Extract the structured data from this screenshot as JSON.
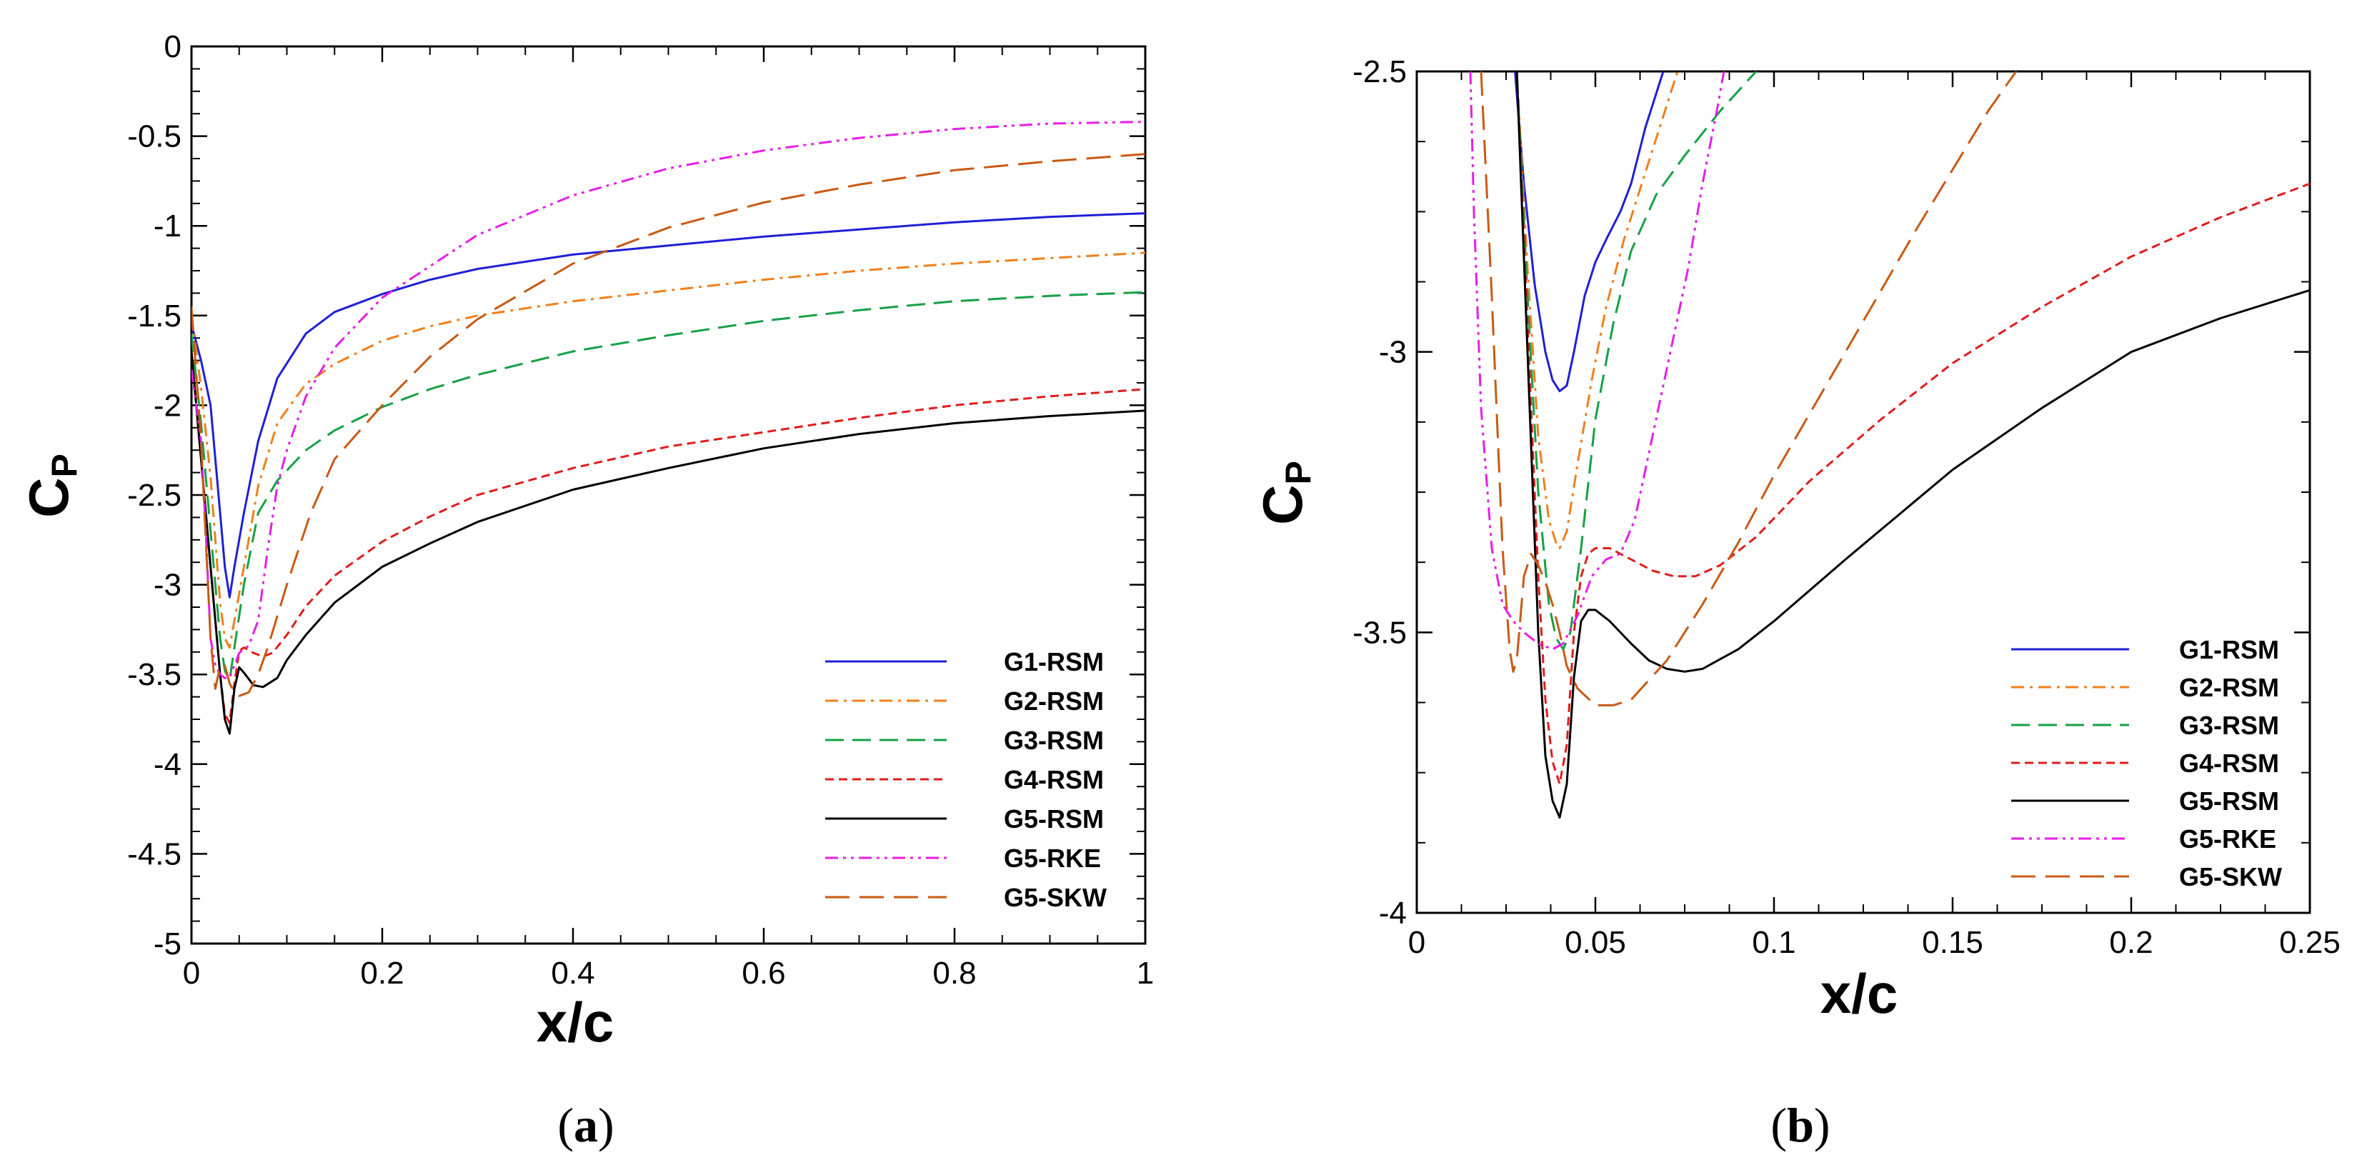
{
  "chart_data": [
    {
      "type": "line",
      "panel_label": "a",
      "xlabel": "x/c",
      "ylabel": "C",
      "ylabel_sub": "P",
      "xlim": [
        0,
        1
      ],
      "ylim": [
        -5,
        0
      ],
      "xticks": [
        0,
        0.2,
        0.4,
        0.6,
        0.8,
        1
      ],
      "xtick_labels": [
        "0",
        "0.2",
        "0.4",
        "0.6",
        "0.8",
        "1"
      ],
      "yticks": [
        0,
        -0.5,
        -1,
        -1.5,
        -2,
        -2.5,
        -3,
        -3.5,
        -4,
        -4.5,
        -5
      ],
      "ytick_labels": [
        "0",
        "-0.5",
        "-1",
        "-1.5",
        "-2",
        "-2.5",
        "-3",
        "-3.5",
        "-4",
        "-4.5",
        "-5"
      ],
      "legend": "bottom-right",
      "series": [
        {
          "name": "G1-RSM",
          "color": "#1f1fd6",
          "dash": "solid",
          "x": [
            0,
            0.01,
            0.02,
            0.03,
            0.035,
            0.04,
            0.045,
            0.055,
            0.07,
            0.09,
            0.12,
            0.15,
            0.2,
            0.25,
            0.3,
            0.4,
            0.5,
            0.6,
            0.7,
            0.8,
            0.9,
            1.0
          ],
          "y": [
            -1.55,
            -1.75,
            -2.0,
            -2.6,
            -2.9,
            -3.07,
            -2.9,
            -2.6,
            -2.2,
            -1.85,
            -1.6,
            -1.48,
            -1.38,
            -1.3,
            -1.24,
            -1.16,
            -1.11,
            -1.06,
            -1.02,
            -0.98,
            -0.95,
            -0.93
          ]
        },
        {
          "name": "G2-RSM",
          "color": "#f07f1a",
          "dash": "dashdot",
          "x": [
            0,
            0.01,
            0.02,
            0.03,
            0.035,
            0.04,
            0.045,
            0.055,
            0.07,
            0.09,
            0.12,
            0.15,
            0.2,
            0.25,
            0.3,
            0.4,
            0.5,
            0.6,
            0.7,
            0.8,
            0.9,
            1.0
          ],
          "y": [
            -1.5,
            -1.9,
            -2.4,
            -3.1,
            -3.3,
            -3.35,
            -3.2,
            -2.9,
            -2.45,
            -2.1,
            -1.88,
            -1.77,
            -1.64,
            -1.56,
            -1.5,
            -1.42,
            -1.36,
            -1.3,
            -1.25,
            -1.21,
            -1.18,
            -1.15
          ]
        },
        {
          "name": "G3-RSM",
          "color": "#16a045",
          "dash": "longdash",
          "x": [
            0,
            0.01,
            0.02,
            0.03,
            0.035,
            0.04,
            0.045,
            0.055,
            0.07,
            0.09,
            0.12,
            0.15,
            0.2,
            0.25,
            0.3,
            0.4,
            0.5,
            0.6,
            0.7,
            0.8,
            0.9,
            1.0
          ],
          "y": [
            -1.6,
            -2.1,
            -2.7,
            -3.3,
            -3.48,
            -3.53,
            -3.35,
            -3.0,
            -2.6,
            -2.42,
            -2.25,
            -2.14,
            -2.01,
            -1.91,
            -1.83,
            -1.7,
            -1.61,
            -1.53,
            -1.47,
            -1.42,
            -1.39,
            -1.37
          ]
        },
        {
          "name": "G4-RSM",
          "color": "#e01c1c",
          "dash": "shortdash",
          "x": [
            0,
            0.01,
            0.02,
            0.03,
            0.035,
            0.04,
            0.045,
            0.05,
            0.055,
            0.065,
            0.075,
            0.085,
            0.1,
            0.12,
            0.15,
            0.2,
            0.25,
            0.3,
            0.4,
            0.5,
            0.6,
            0.7,
            0.8,
            0.9,
            1.0
          ],
          "y": [
            -1.7,
            -2.3,
            -2.9,
            -3.5,
            -3.72,
            -3.77,
            -3.55,
            -3.37,
            -3.35,
            -3.38,
            -3.4,
            -3.38,
            -3.28,
            -3.12,
            -2.95,
            -2.76,
            -2.62,
            -2.5,
            -2.35,
            -2.23,
            -2.15,
            -2.07,
            -2.0,
            -1.95,
            -1.91
          ]
        },
        {
          "name": "G5-RSM",
          "color": "#000000",
          "dash": "solid",
          "x": [
            0,
            0.01,
            0.02,
            0.03,
            0.035,
            0.04,
            0.045,
            0.05,
            0.055,
            0.065,
            0.075,
            0.09,
            0.1,
            0.12,
            0.15,
            0.2,
            0.25,
            0.3,
            0.4,
            0.5,
            0.6,
            0.7,
            0.8,
            0.9,
            1.0
          ],
          "y": [
            -1.7,
            -2.3,
            -2.9,
            -3.5,
            -3.75,
            -3.83,
            -3.58,
            -3.46,
            -3.49,
            -3.56,
            -3.57,
            -3.52,
            -3.42,
            -3.28,
            -3.1,
            -2.9,
            -2.77,
            -2.65,
            -2.47,
            -2.35,
            -2.24,
            -2.16,
            -2.1,
            -2.06,
            -2.03
          ]
        },
        {
          "name": "G5-RKE",
          "color": "#e61ee6",
          "dash": "dashdotdot",
          "x": [
            0,
            0.01,
            0.015,
            0.02,
            0.025,
            0.03,
            0.035,
            0.04,
            0.05,
            0.06,
            0.07,
            0.08,
            0.09,
            0.1,
            0.12,
            0.15,
            0.2,
            0.3,
            0.4,
            0.5,
            0.6,
            0.7,
            0.8,
            0.9,
            1.0
          ],
          "y": [
            -1.8,
            -2.2,
            -2.7,
            -3.3,
            -3.45,
            -3.5,
            -3.52,
            -3.52,
            -3.38,
            -3.34,
            -3.2,
            -2.8,
            -2.45,
            -2.25,
            -1.95,
            -1.68,
            -1.4,
            -1.05,
            -0.83,
            -0.68,
            -0.58,
            -0.51,
            -0.46,
            -0.43,
            -0.42
          ]
        },
        {
          "name": "G5-SKW",
          "color": "#c85a14",
          "dash": "longdash2",
          "x": [
            0,
            0.01,
            0.02,
            0.025,
            0.03,
            0.035,
            0.04,
            0.045,
            0.05,
            0.06,
            0.07,
            0.08,
            0.1,
            0.125,
            0.15,
            0.2,
            0.25,
            0.3,
            0.4,
            0.5,
            0.6,
            0.7,
            0.8,
            0.9,
            1.0
          ],
          "y": [
            -1.45,
            -2.2,
            -3.3,
            -3.58,
            -3.45,
            -3.45,
            -3.55,
            -3.6,
            -3.62,
            -3.6,
            -3.5,
            -3.35,
            -3.0,
            -2.6,
            -2.3,
            -2.0,
            -1.73,
            -1.52,
            -1.21,
            -1.01,
            -0.87,
            -0.77,
            -0.69,
            -0.64,
            -0.6
          ]
        }
      ]
    },
    {
      "type": "line",
      "panel_label": "b",
      "xlabel": "x/c",
      "ylabel": "C",
      "ylabel_sub": "P",
      "xlim": [
        0,
        0.25
      ],
      "ylim": [
        -4,
        -2.5
      ],
      "xticks": [
        0,
        0.05,
        0.1,
        0.15,
        0.2,
        0.25
      ],
      "xtick_labels": [
        "0",
        "0.05",
        "0.1",
        "0.15",
        "0.2",
        "0.25"
      ],
      "yticks": [
        -2.5,
        -3,
        -3.5,
        -4
      ],
      "ytick_labels": [
        "-2.5",
        "-3",
        "-3.5",
        "-4"
      ],
      "legend": "bottom-right",
      "series": [
        {
          "name": "G1-RSM",
          "color": "#1f1fd6",
          "dash": "solid",
          "x": [
            0.0275,
            0.03,
            0.033,
            0.036,
            0.038,
            0.04,
            0.042,
            0.044,
            0.047,
            0.05,
            0.053,
            0.057,
            0.06,
            0.064,
            0.069
          ],
          "y": [
            -2.5,
            -2.7,
            -2.88,
            -3.0,
            -3.05,
            -3.07,
            -3.06,
            -3.0,
            -2.9,
            -2.84,
            -2.8,
            -2.75,
            -2.7,
            -2.6,
            -2.5
          ]
        },
        {
          "name": "G2-RSM",
          "color": "#f07f1a",
          "dash": "dashdot",
          "x": [
            0.028,
            0.031,
            0.034,
            0.037,
            0.039,
            0.04,
            0.042,
            0.045,
            0.049,
            0.053,
            0.058,
            0.063,
            0.068,
            0.073
          ],
          "y": [
            -2.5,
            -2.85,
            -3.15,
            -3.3,
            -3.34,
            -3.35,
            -3.32,
            -3.2,
            -3.05,
            -2.92,
            -2.8,
            -2.7,
            -2.6,
            -2.5
          ]
        },
        {
          "name": "G3-RSM",
          "color": "#16a045",
          "dash": "longdash",
          "x": [
            0.028,
            0.031,
            0.034,
            0.037,
            0.039,
            0.041,
            0.043,
            0.046,
            0.05,
            0.055,
            0.06,
            0.067,
            0.075,
            0.085,
            0.095
          ],
          "y": [
            -2.5,
            -2.9,
            -3.25,
            -3.45,
            -3.51,
            -3.53,
            -3.5,
            -3.35,
            -3.12,
            -2.95,
            -2.82,
            -2.72,
            -2.65,
            -2.57,
            -2.5
          ]
        },
        {
          "name": "G4-RSM",
          "color": "#e01c1c",
          "dash": "shortdash",
          "x": [
            0.028,
            0.031,
            0.034,
            0.036,
            0.038,
            0.04,
            0.042,
            0.044,
            0.046,
            0.048,
            0.05,
            0.054,
            0.06,
            0.066,
            0.072,
            0.078,
            0.085,
            0.095,
            0.11,
            0.13,
            0.15,
            0.175,
            0.2,
            0.225,
            0.25
          ],
          "y": [
            -2.5,
            -2.95,
            -3.4,
            -3.62,
            -3.73,
            -3.77,
            -3.7,
            -3.5,
            -3.4,
            -3.36,
            -3.35,
            -3.35,
            -3.37,
            -3.39,
            -3.4,
            -3.4,
            -3.38,
            -3.33,
            -3.23,
            -3.12,
            -3.02,
            -2.92,
            -2.83,
            -2.76,
            -2.7
          ]
        },
        {
          "name": "G5-RSM",
          "color": "#000000",
          "dash": "solid",
          "x": [
            0.028,
            0.031,
            0.034,
            0.036,
            0.038,
            0.04,
            0.042,
            0.044,
            0.046,
            0.048,
            0.05,
            0.054,
            0.06,
            0.065,
            0.07,
            0.075,
            0.08,
            0.09,
            0.1,
            0.12,
            0.15,
            0.175,
            0.2,
            0.225,
            0.25
          ],
          "y": [
            -2.5,
            -3.0,
            -3.5,
            -3.72,
            -3.8,
            -3.83,
            -3.77,
            -3.58,
            -3.48,
            -3.46,
            -3.46,
            -3.48,
            -3.52,
            -3.55,
            -3.565,
            -3.57,
            -3.565,
            -3.53,
            -3.48,
            -3.37,
            -3.21,
            -3.1,
            -3.0,
            -2.94,
            -2.89
          ]
        },
        {
          "name": "G5-RKE",
          "color": "#e61ee6",
          "dash": "dashdotdot",
          "x": [
            0.015,
            0.016,
            0.018,
            0.021,
            0.024,
            0.027,
            0.03,
            0.034,
            0.038,
            0.041,
            0.045,
            0.049,
            0.053,
            0.057,
            0.061,
            0.066,
            0.071,
            0.076,
            0.08,
            0.084,
            0.086
          ],
          "y": [
            -2.5,
            -2.75,
            -3.1,
            -3.35,
            -3.45,
            -3.48,
            -3.5,
            -3.52,
            -3.53,
            -3.52,
            -3.47,
            -3.4,
            -3.37,
            -3.36,
            -3.3,
            -3.15,
            -3.0,
            -2.85,
            -2.7,
            -2.57,
            -2.5
          ]
        },
        {
          "name": "G5-SKW",
          "color": "#c85a14",
          "dash": "longdash2",
          "x": [
            0.018,
            0.021,
            0.024,
            0.026,
            0.027,
            0.028,
            0.03,
            0.032,
            0.034,
            0.036,
            0.038,
            0.04,
            0.042,
            0.045,
            0.05,
            0.055,
            0.06,
            0.07,
            0.08,
            0.09,
            0.1,
            0.12,
            0.14,
            0.16,
            0.17
          ],
          "y": [
            -2.5,
            -2.9,
            -3.35,
            -3.53,
            -3.57,
            -3.55,
            -3.4,
            -3.36,
            -3.38,
            -3.41,
            -3.45,
            -3.5,
            -3.56,
            -3.6,
            -3.63,
            -3.63,
            -3.62,
            -3.55,
            -3.45,
            -3.34,
            -3.22,
            -3.0,
            -2.78,
            -2.57,
            -2.48
          ]
        }
      ]
    }
  ],
  "captions": [
    {
      "open": "(",
      "letter": "a",
      "close": ")"
    },
    {
      "open": "(",
      "letter": "b",
      "close": ")"
    }
  ]
}
